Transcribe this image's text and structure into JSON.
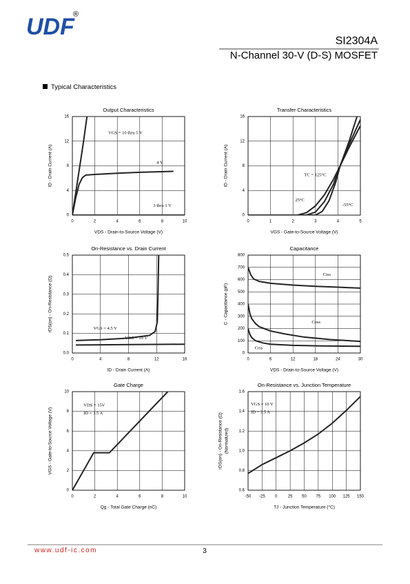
{
  "header": {
    "logo": "UDF",
    "registered": "®",
    "part_number": "SI2304A",
    "description": "N-Channel 30-V (D-S) MOSFET"
  },
  "section_title": "Typical Characteristics",
  "footer": {
    "url": "www.udf-ic.com",
    "page": "3"
  },
  "chart_data": [
    {
      "type": "line",
      "title": "Output Characteristics",
      "xlabel": "VDS - Drain-to-Source Voltage (V)",
      "ylabel": "ID - Drain Current (A)",
      "xlim": [
        0,
        10
      ],
      "xticks": [
        0,
        2,
        4,
        6,
        8,
        10
      ],
      "ylim": [
        0,
        16
      ],
      "yticks": [
        0,
        4,
        8,
        12,
        16
      ],
      "grid": true,
      "color": "#222",
      "series": [
        {
          "name": "VGS = 10 thru 5 V",
          "x": [
            0,
            0.5,
            1.0,
            1.3
          ],
          "values": [
            0,
            6,
            12,
            16
          ]
        },
        {
          "name": "4 V",
          "x": [
            0,
            0.3,
            0.6,
            0.9,
            1.2,
            2,
            4,
            6,
            9
          ],
          "values": [
            0,
            2.8,
            5,
            6.1,
            6.5,
            6.6,
            6.8,
            6.95,
            7.1
          ]
        },
        {
          "name": "3 thru 1 V",
          "x": [
            0,
            10
          ],
          "values": [
            0,
            0
          ]
        }
      ]
    },
    {
      "type": "line",
      "title": "Transfer Characteristics",
      "xlabel": "VGS - Gate-to-Source Voltage (V)",
      "ylabel": "ID - Drain Current (A)",
      "xlim": [
        0,
        5
      ],
      "xticks": [
        0,
        1,
        2,
        3,
        4,
        5
      ],
      "ylim": [
        0,
        16
      ],
      "yticks": [
        0,
        4,
        8,
        12,
        16
      ],
      "grid": true,
      "color": "#222",
      "series": [
        {
          "name": "TC = 125°C",
          "x": [
            0,
            2.2,
            2.6,
            3,
            3.4,
            3.8,
            4.1,
            4.5,
            5
          ],
          "values": [
            0,
            0,
            0.4,
            1.5,
            3.3,
            5.8,
            8,
            11,
            14.5
          ]
        },
        {
          "name": "25°C",
          "x": [
            0,
            2.6,
            3,
            3.4,
            3.8,
            4.1,
            4.5,
            5
          ],
          "values": [
            0,
            0,
            0.5,
            2.2,
            5,
            8,
            11.5,
            15.5
          ]
        },
        {
          "name": "-55°C",
          "x": [
            0,
            3,
            3.3,
            3.6,
            3.9,
            4.1,
            4.5,
            4.85
          ],
          "values": [
            0,
            0,
            0.6,
            2.3,
            5.3,
            8,
            12,
            16
          ]
        }
      ]
    },
    {
      "type": "line",
      "title": "On-Resistance vs. Drain Current",
      "xlabel": "ID - Drain Current (A)",
      "ylabel": "rDS(on) - On-Resistance (Ω)",
      "xlim": [
        0,
        16
      ],
      "xticks": [
        0,
        4,
        8,
        12,
        16
      ],
      "ylim": [
        0,
        0.5
      ],
      "yticks": [
        {
          "value": 0,
          "label": "0.0"
        },
        0.1,
        0.2,
        0.3,
        0.4,
        0.5
      ],
      "grid": true,
      "color": "#222",
      "series": [
        {
          "name": "VGS = 4.5 V",
          "x": [
            0.5,
            4,
            8,
            11,
            11.8,
            12.1,
            12.2,
            12.3
          ],
          "values": [
            0.064,
            0.068,
            0.076,
            0.09,
            0.11,
            0.16,
            0.3,
            0.5
          ]
        },
        {
          "name": "VGS = 10 V",
          "x": [
            0.5,
            4,
            8,
            12,
            16
          ],
          "values": [
            0.041,
            0.042,
            0.043,
            0.044,
            0.045
          ]
        }
      ]
    },
    {
      "type": "line",
      "title": "Capacitance",
      "xlabel": "VDS - Drain-to-Source Voltage (V)",
      "ylabel": "C - Capacitance (pF)",
      "xlim": [
        0,
        30
      ],
      "xticks": [
        0,
        6,
        12,
        18,
        24,
        30
      ],
      "ylim": [
        0,
        800
      ],
      "yticks": [
        0,
        100,
        200,
        300,
        400,
        500,
        600,
        700,
        800
      ],
      "grid": true,
      "color": "#222",
      "series": [
        {
          "name": "Ciss",
          "x": [
            0,
            0.7,
            1.5,
            3,
            6,
            12,
            18,
            24,
            30
          ],
          "values": [
            700,
            640,
            605,
            585,
            570,
            555,
            545,
            538,
            530
          ]
        },
        {
          "name": "Coss",
          "x": [
            0,
            0.5,
            1,
            2,
            3,
            6,
            10,
            15,
            22,
            30
          ],
          "values": [
            400,
            320,
            280,
            240,
            215,
            180,
            155,
            130,
            110,
            95
          ]
        },
        {
          "name": "Crss",
          "x": [
            0,
            0.5,
            1,
            2,
            4,
            6,
            12,
            20,
            30
          ],
          "values": [
            200,
            150,
            125,
            100,
            82,
            72,
            63,
            58,
            55
          ]
        }
      ]
    },
    {
      "type": "line",
      "title": "Gate Charge",
      "xlabel": "Qg - Total Gate Charge (nC)",
      "ylabel": "VGS - Gate-to-Source Voltage (V)",
      "xlim": [
        0,
        10
      ],
      "xticks": [
        0,
        2,
        4,
        6,
        8,
        10
      ],
      "ylim": [
        0,
        10
      ],
      "yticks": [
        0,
        2,
        4,
        6,
        8,
        10
      ],
      "grid": true,
      "color": "#222",
      "annotations": [
        "VDS = 15V",
        "ID = 3.5 A"
      ],
      "series": [
        {
          "x": [
            0,
            1.9,
            3.3,
            8.5
          ],
          "values": [
            0,
            3.8,
            3.8,
            10
          ]
        }
      ]
    },
    {
      "type": "line",
      "title": "On-Resistance vs. Junction Temperature",
      "xlabel": "TJ - Junction Temperature (°C)",
      "ylabel": "rDS(on) - On-Resistance (Ω)",
      "ylabel2": "(Normalized)",
      "xlim": [
        -50,
        150
      ],
      "xticks": [
        -50,
        -25,
        0,
        25,
        50,
        75,
        100,
        125,
        150
      ],
      "ylim": [
        0.6,
        1.6
      ],
      "yticks": [
        0.6,
        0.8,
        {
          "value": 1,
          "label": "1.0"
        },
        1.2,
        1.4,
        1.6
      ],
      "grid": true,
      "color": "#222",
      "annotations": [
        "VGS = 10 V",
        "ID = 3.5 A"
      ],
      "series": [
        {
          "x": [
            -50,
            -25,
            0,
            25,
            50,
            75,
            100,
            125,
            150
          ],
          "values": [
            0.77,
            0.86,
            0.93,
            1.0,
            1.08,
            1.17,
            1.28,
            1.41,
            1.55
          ]
        }
      ]
    }
  ]
}
